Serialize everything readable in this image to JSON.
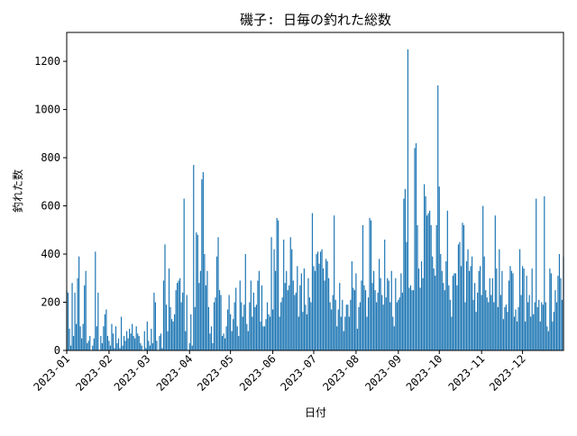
{
  "chart_data": {
    "type": "bar",
    "title": "磯子: 日毎の釣れた総数",
    "xlabel": "日付",
    "ylabel": "釣れた数",
    "color": "#1f77b4",
    "xlim": [
      0,
      364
    ],
    "ylim": [
      0,
      1320
    ],
    "xticks": [
      {
        "value": 0,
        "label": "2023-01"
      },
      {
        "value": 31,
        "label": "2023-02"
      },
      {
        "value": 59,
        "label": "2023-03"
      },
      {
        "value": 90,
        "label": "2023-04"
      },
      {
        "value": 120,
        "label": "2023-05"
      },
      {
        "value": 151,
        "label": "2023-06"
      },
      {
        "value": 181,
        "label": "2023-07"
      },
      {
        "value": 212,
        "label": "2023-08"
      },
      {
        "value": 243,
        "label": "2023-09"
      },
      {
        "value": 273,
        "label": "2023-10"
      },
      {
        "value": 304,
        "label": "2023-11"
      },
      {
        "value": 334,
        "label": "2023-12"
      }
    ],
    "yticks": [
      0,
      200,
      400,
      600,
      800,
      1000,
      1200
    ],
    "x": [
      0,
      1,
      2,
      3,
      4,
      5,
      6,
      7,
      8,
      9,
      10,
      11,
      12,
      13,
      14,
      15,
      16,
      17,
      18,
      19,
      20,
      21,
      22,
      23,
      24,
      25,
      26,
      27,
      28,
      29,
      30,
      31,
      32,
      33,
      34,
      35,
      36,
      37,
      38,
      39,
      40,
      41,
      42,
      43,
      44,
      45,
      46,
      47,
      48,
      49,
      50,
      51,
      52,
      53,
      54,
      55,
      56,
      57,
      58,
      59,
      60,
      61,
      62,
      63,
      64,
      65,
      66,
      67,
      68,
      69,
      70,
      71,
      72,
      73,
      74,
      75,
      76,
      77,
      78,
      79,
      80,
      81,
      82,
      83,
      84,
      85,
      86,
      87,
      88,
      89,
      90,
      91,
      92,
      93,
      94,
      95,
      96,
      97,
      98,
      99,
      100,
      101,
      102,
      103,
      104,
      105,
      106,
      107,
      108,
      109,
      110,
      111,
      112,
      113,
      114,
      115,
      116,
      117,
      118,
      119,
      120,
      121,
      122,
      123,
      124,
      125,
      126,
      127,
      128,
      129,
      130,
      131,
      132,
      133,
      134,
      135,
      136,
      137,
      138,
      139,
      140,
      141,
      142,
      143,
      144,
      145,
      146,
      147,
      148,
      149,
      150,
      151,
      152,
      153,
      154,
      155,
      156,
      157,
      158,
      159,
      160,
      161,
      162,
      163,
      164,
      165,
      166,
      167,
      168,
      169,
      170,
      171,
      172,
      173,
      174,
      175,
      176,
      177,
      178,
      179,
      180,
      181,
      182,
      183,
      184,
      185,
      186,
      187,
      188,
      189,
      190,
      191,
      192,
      193,
      194,
      195,
      196,
      197,
      198,
      199,
      200,
      201,
      202,
      203,
      204,
      205,
      206,
      207,
      208,
      209,
      210,
      211,
      212,
      213,
      214,
      215,
      216,
      217,
      218,
      219,
      220,
      221,
      222,
      223,
      224,
      225,
      226,
      227,
      228,
      229,
      230,
      231,
      232,
      233,
      234,
      235,
      236,
      237,
      238,
      239,
      240,
      241,
      242,
      243,
      244,
      245,
      246,
      247,
      248,
      249,
      250,
      251,
      252,
      253,
      254,
      255,
      256,
      257,
      258,
      259,
      260,
      261,
      262,
      263,
      264,
      265,
      266,
      267,
      268,
      269,
      270,
      271,
      272,
      273,
      274,
      275,
      276,
      277,
      278,
      279,
      280,
      281,
      282,
      283,
      284,
      285,
      286,
      287,
      288,
      289,
      290,
      291,
      292,
      293,
      294,
      295,
      296,
      297,
      298,
      299,
      300,
      301,
      302,
      303,
      304,
      305,
      306,
      307,
      308,
      309,
      310,
      311,
      312,
      313,
      314,
      315,
      316,
      317,
      318,
      319,
      320,
      321,
      322,
      323,
      324,
      325,
      326,
      327,
      328,
      329,
      330,
      331,
      332,
      333,
      334,
      335,
      336,
      337,
      338,
      339,
      340,
      341,
      342,
      343,
      344,
      345,
      346,
      347,
      348,
      349,
      350,
      351,
      352,
      353,
      354,
      355,
      356,
      357,
      358,
      359,
      360,
      361,
      362,
      363,
      364
    ],
    "values": [
      250,
      240,
      90,
      20,
      280,
      60,
      240,
      110,
      300,
      390,
      100,
      50,
      110,
      270,
      330,
      30,
      40,
      60,
      0,
      20,
      50,
      410,
      100,
      240,
      0,
      60,
      30,
      100,
      150,
      170,
      60,
      40,
      20,
      110,
      70,
      10,
      100,
      30,
      50,
      10,
      140,
      20,
      60,
      40,
      80,
      50,
      90,
      70,
      110,
      60,
      50,
      100,
      70,
      60,
      30,
      20,
      0,
      80,
      10,
      120,
      40,
      20,
      90,
      30,
      240,
      200,
      40,
      0,
      60,
      70,
      10,
      290,
      440,
      190,
      80,
      340,
      180,
      130,
      120,
      150,
      250,
      280,
      290,
      300,
      200,
      240,
      630,
      80,
      230,
      0,
      30,
      150,
      20,
      770,
      180,
      490,
      480,
      280,
      330,
      710,
      740,
      400,
      270,
      330,
      180,
      70,
      100,
      30,
      200,
      220,
      390,
      470,
      250,
      230,
      60,
      70,
      50,
      100,
      170,
      230,
      150,
      80,
      130,
      200,
      260,
      100,
      60,
      290,
      200,
      140,
      190,
      400,
      110,
      80,
      200,
      290,
      140,
      240,
      180,
      190,
      290,
      330,
      120,
      270,
      100,
      100,
      130,
      200,
      150,
      140,
      470,
      170,
      420,
      330,
      550,
      540,
      140,
      200,
      220,
      460,
      280,
      330,
      250,
      270,
      470,
      420,
      290,
      230,
      240,
      350,
      140,
      270,
      320,
      160,
      340,
      190,
      150,
      300,
      220,
      200,
      570,
      350,
      330,
      400,
      410,
      360,
      410,
      420,
      340,
      290,
      380,
      370,
      300,
      200,
      170,
      230,
      560,
      210,
      100,
      170,
      280,
      140,
      210,
      80,
      140,
      190,
      190,
      140,
      210,
      370,
      260,
      250,
      320,
      90,
      180,
      200,
      290,
      520,
      270,
      250,
      140,
      220,
      550,
      540,
      280,
      330,
      250,
      200,
      240,
      380,
      300,
      230,
      190,
      460,
      220,
      300,
      290,
      200,
      330,
      140,
      100,
      300,
      200,
      210,
      220,
      320,
      240,
      630,
      670,
      450,
      1250,
      260,
      270,
      250,
      250,
      840,
      860,
      520,
      340,
      260,
      370,
      300,
      690,
      640,
      560,
      570,
      580,
      520,
      390,
      340,
      310,
      520,
      1100,
      680,
      400,
      330,
      280,
      250,
      370,
      580,
      270,
      210,
      140,
      310,
      320,
      320,
      270,
      440,
      450,
      350,
      530,
      520,
      200,
      370,
      420,
      330,
      350,
      390,
      210,
      280,
      160,
      240,
      330,
      350,
      230,
      600,
      390,
      250,
      220,
      200,
      300,
      230,
      300,
      200,
      560,
      340,
      180,
      420,
      230,
      330,
      130,
      180,
      190,
      160,
      290,
      350,
      330,
      320,
      140,
      170,
      120,
      180,
      420,
      230,
      350,
      340,
      120,
      310,
      200,
      230,
      140,
      340,
      150,
      200,
      630,
      180,
      210,
      120,
      200,
      190,
      640,
      200,
      100,
      80,
      340,
      320,
      120,
      160,
      250,
      200,
      310,
      400,
      300,
      210,
      390
    ]
  }
}
